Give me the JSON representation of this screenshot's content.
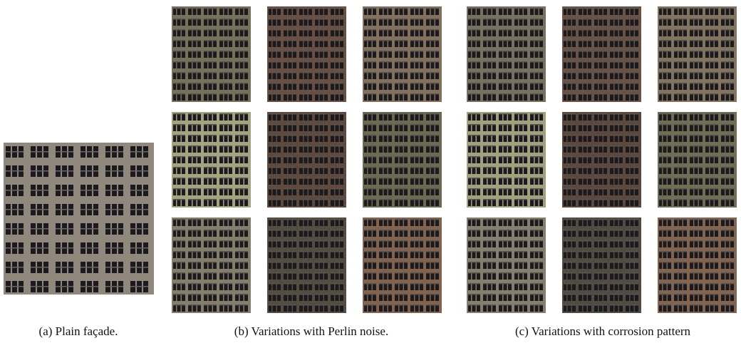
{
  "figure": {
    "panels": [
      {
        "caption": "(a) Plain façade."
      },
      {
        "caption": "(b) Variations with Perlin noise."
      },
      {
        "caption": "(c) Variations with corrosion pattern"
      }
    ]
  }
}
